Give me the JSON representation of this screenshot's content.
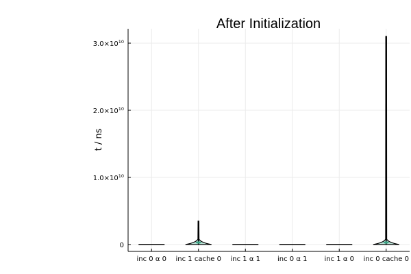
{
  "chart_data": {
    "type": "violin",
    "title": "After Initialization",
    "xlabel": "",
    "ylabel": "t / ns",
    "categories": [
      "inc 0 α 0",
      "inc 1 cache 0",
      "inc 1 α 1",
      "inc 0 α 1",
      "inc 1 α 0",
      "inc 0 cache 0"
    ],
    "ylim": [
      -1000000000.0,
      32000000000.0
    ],
    "yticks": [
      0,
      10000000000.0,
      20000000000.0,
      30000000000.0
    ],
    "ytick_labels": [
      {
        "mantissa": "0",
        "exponent": ""
      },
      {
        "mantissa": "1.0×10",
        "exponent": "10"
      },
      {
        "mantissa": "2.0×10",
        "exponent": "10"
      },
      {
        "mantissa": "3.0×10",
        "exponent": "10"
      }
    ],
    "grid": true,
    "legend": "none",
    "series": [
      {
        "category": "inc 0 α 0",
        "min": 0,
        "max": 10000000.0,
        "max_rel_width": 1.0
      },
      {
        "category": "inc 1 cache 0",
        "min": 0,
        "max": 3500000000.0,
        "max_rel_width": 1.0
      },
      {
        "category": "inc 1 α 1",
        "min": 0,
        "max": 10000000.0,
        "max_rel_width": 1.0
      },
      {
        "category": "inc 0 α 1",
        "min": 0,
        "max": 10000000.0,
        "max_rel_width": 1.0
      },
      {
        "category": "inc 1 α 0",
        "min": 0,
        "max": 10000000.0,
        "max_rel_width": 1.0
      },
      {
        "category": "inc 0 cache 0",
        "min": 0,
        "max": 31000000000.0,
        "max_rel_width": 1.0
      }
    ],
    "colors": {
      "outline": "#000000",
      "highlight": "#3aa385",
      "grid": "#ebebeb"
    }
  }
}
